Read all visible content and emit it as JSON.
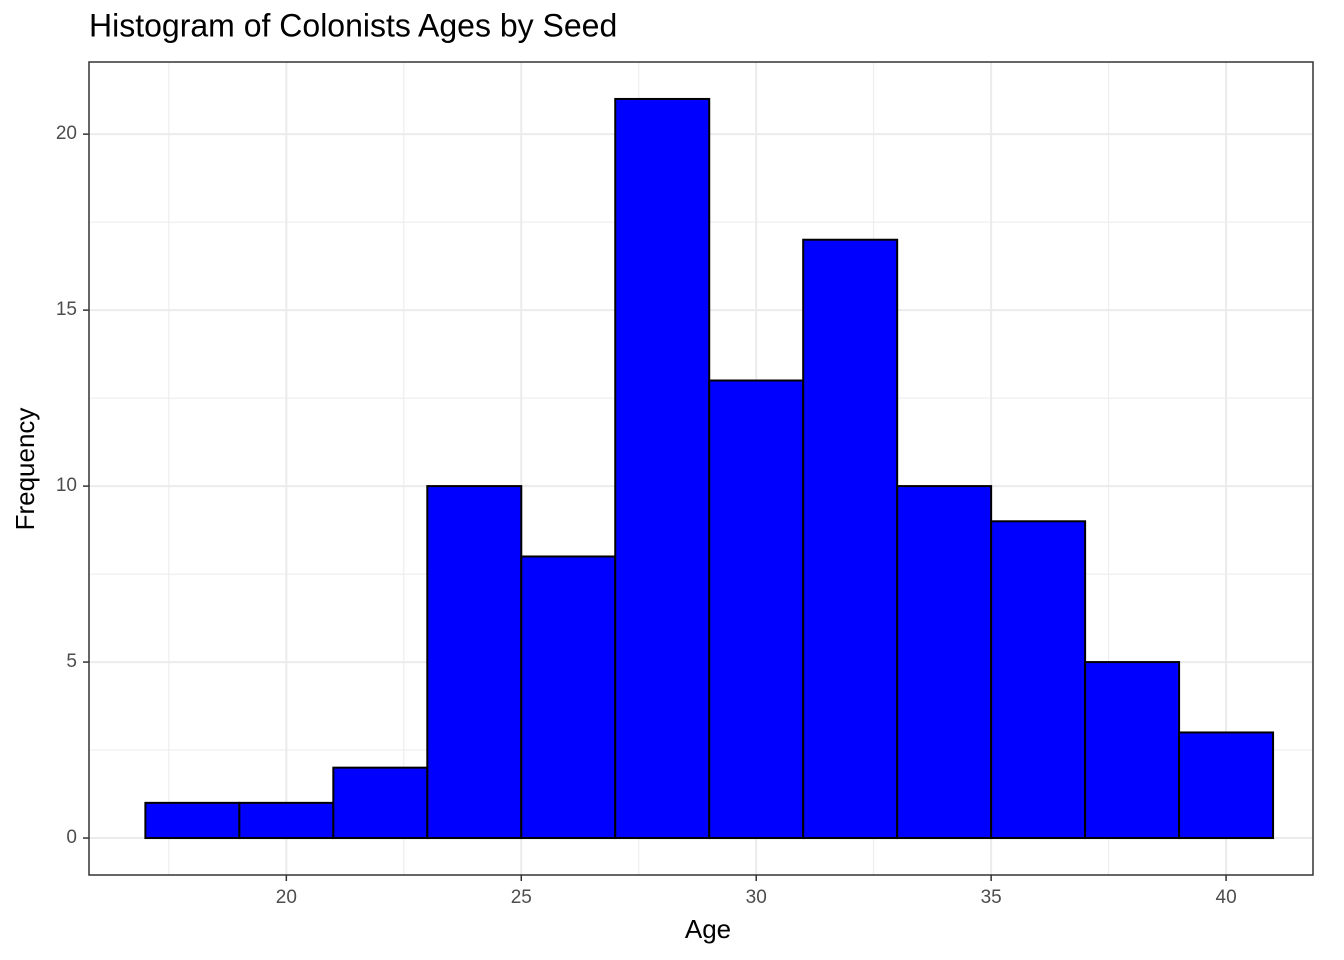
{
  "chart_data": {
    "type": "histogram",
    "title": "Histogram of Colonists Ages by Seed",
    "x_label": "Age",
    "y_label": "Frequency",
    "bins": [
      17,
      19,
      21,
      23,
      25,
      27,
      29,
      31,
      33,
      35,
      37,
      39,
      41
    ],
    "values": [
      1,
      1,
      2,
      10,
      8,
      21,
      13,
      17,
      10,
      9,
      5,
      3
    ],
    "color": "#0000ff",
    "edge_color": "#000000",
    "xlim": [
      15.8,
      41.85
    ],
    "ylim": [
      -1.05,
      22.05
    ],
    "xticks": [
      20,
      25,
      30,
      35,
      40
    ],
    "yticks": [
      0,
      5,
      10,
      15,
      20
    ],
    "grid": true
  }
}
